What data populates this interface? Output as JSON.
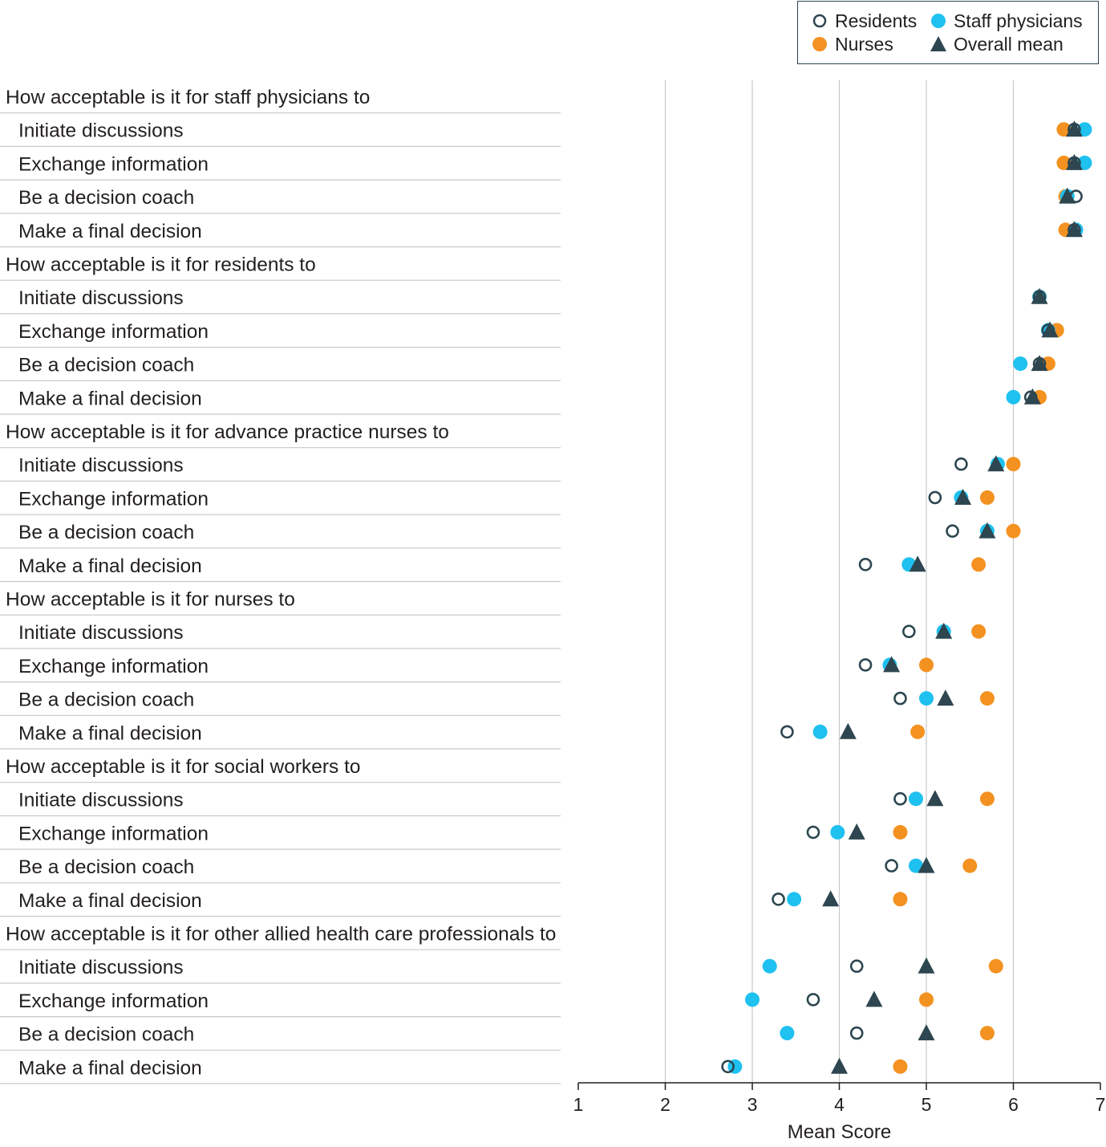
{
  "legend": {
    "residents": "Residents",
    "staff": "Staff physicians",
    "nurses": "Nurses",
    "overall": "Overall mean"
  },
  "colors": {
    "residents": "#2d4650",
    "staff": "#1ec1f0",
    "nurses": "#f39220",
    "overall": "#2d4650",
    "grid": "#c8c8c8",
    "divider": "#c8c8c8"
  },
  "chart_data": {
    "type": "scatter",
    "xlabel": "Mean Score",
    "xlim": [
      1,
      7
    ],
    "xticks": [
      "1",
      "2",
      "3",
      "4",
      "5",
      "6",
      "7"
    ],
    "grid": "vertical",
    "legend_position": "top-right",
    "series_order": [
      "residents",
      "staff",
      "nurses",
      "overall"
    ],
    "groups": [
      {
        "header": "How acceptable is it for staff physicians to",
        "items": [
          {
            "label": "Initiate discussions",
            "residents": 6.7,
            "staff": 6.82,
            "nurses": 6.58,
            "overall": 6.7
          },
          {
            "label": "Exchange information",
            "residents": 6.7,
            "staff": 6.82,
            "nurses": 6.58,
            "overall": 6.7
          },
          {
            "label": "Be a decision coach",
            "residents": 6.72,
            "staff": 6.62,
            "nurses": 6.6,
            "overall": 6.62
          },
          {
            "label": "Make a final decision",
            "residents": 6.7,
            "staff": 6.72,
            "nurses": 6.6,
            "overall": 6.7
          }
        ]
      },
      {
        "header": "How acceptable is it for residents to",
        "items": [
          {
            "label": "Initiate discussions",
            "residents": 6.3,
            "staff": 6.3,
            "nurses": 6.3,
            "overall": 6.3
          },
          {
            "label": "Exchange information",
            "residents": 6.4,
            "staff": 6.4,
            "nurses": 6.5,
            "overall": 6.42
          },
          {
            "label": "Be a decision coach",
            "residents": 6.3,
            "staff": 6.08,
            "nurses": 6.4,
            "overall": 6.3
          },
          {
            "label": "Make a final decision",
            "residents": 6.2,
            "staff": 6.0,
            "nurses": 6.3,
            "overall": 6.22
          }
        ]
      },
      {
        "header": "How acceptable is it for advance practice nurses to",
        "items": [
          {
            "label": "Initiate discussions",
            "residents": 5.4,
            "staff": 5.82,
            "nurses": 6.0,
            "overall": 5.8
          },
          {
            "label": "Exchange information",
            "residents": 5.1,
            "staff": 5.4,
            "nurses": 5.7,
            "overall": 5.42
          },
          {
            "label": "Be a decision coach",
            "residents": 5.3,
            "staff": 5.7,
            "nurses": 6.0,
            "overall": 5.7
          },
          {
            "label": "Make a final decision",
            "residents": 4.3,
            "staff": 4.8,
            "nurses": 5.6,
            "overall": 4.9
          }
        ]
      },
      {
        "header": "How acceptable is it for nurses to",
        "items": [
          {
            "label": "Initiate discussions",
            "residents": 4.8,
            "staff": 5.2,
            "nurses": 5.6,
            "overall": 5.2
          },
          {
            "label": "Exchange information",
            "residents": 4.3,
            "staff": 4.58,
            "nurses": 5.0,
            "overall": 4.6
          },
          {
            "label": "Be a decision coach",
            "residents": 4.7,
            "staff": 5.0,
            "nurses": 5.7,
            "overall": 5.22
          },
          {
            "label": "Make a final decision",
            "residents": 3.4,
            "staff": 3.78,
            "nurses": 4.9,
            "overall": 4.1
          }
        ]
      },
      {
        "header": "How acceptable is it for social workers to",
        "items": [
          {
            "label": "Initiate discussions",
            "residents": 4.7,
            "staff": 4.88,
            "nurses": 5.7,
            "overall": 5.1
          },
          {
            "label": "Exchange information",
            "residents": 3.7,
            "staff": 3.98,
            "nurses": 4.7,
            "overall": 4.2
          },
          {
            "label": "Be a decision coach",
            "residents": 4.6,
            "staff": 4.88,
            "nurses": 5.5,
            "overall": 5.0
          },
          {
            "label": "Make a final decision",
            "residents": 3.3,
            "staff": 3.48,
            "nurses": 4.7,
            "overall": 3.9
          }
        ]
      },
      {
        "header": "How acceptable is it for other allied health care professionals to",
        "items": [
          {
            "label": "Initiate discussions",
            "residents": 4.2,
            "staff": 3.2,
            "nurses": 5.8,
            "overall": 5.0
          },
          {
            "label": "Exchange information",
            "residents": 3.7,
            "staff": 3.0,
            "nurses": 5.0,
            "overall": 4.4
          },
          {
            "label": "Be a decision coach",
            "residents": 4.2,
            "staff": 3.4,
            "nurses": 5.7,
            "overall": 5.0
          },
          {
            "label": "Make a final decision",
            "residents": 2.72,
            "staff": 2.8,
            "nurses": 4.7,
            "overall": 4.0
          }
        ]
      }
    ]
  }
}
